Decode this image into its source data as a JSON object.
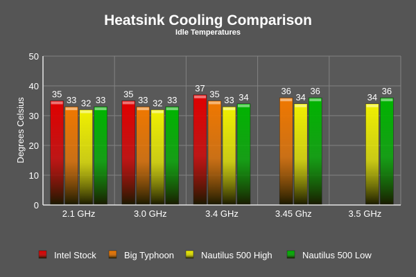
{
  "chart_data": {
    "type": "bar",
    "title": "Heatsink Cooling Comparison",
    "subtitle": "Idle Temperatures",
    "xlabel": "",
    "ylabel": "Degrees Celsius",
    "ylim": [
      0,
      50
    ],
    "yticks": [
      0,
      10,
      20,
      30,
      40,
      50
    ],
    "grid": true,
    "legend_position": "bottom",
    "categories": [
      "2.1 GHz",
      "3.0 GHz",
      "3.4 GHz",
      "3.45 Ghz",
      "3.5 GHz"
    ],
    "series": [
      {
        "name": "Intel Stock",
        "color": "#e00000",
        "values": [
          35,
          35,
          37,
          null,
          null
        ]
      },
      {
        "name": "Big Typhoon",
        "color": "#f07800",
        "values": [
          33,
          33,
          35,
          36,
          null
        ]
      },
      {
        "name": "Nautilus 500 High",
        "color": "#f0f000",
        "values": [
          32,
          32,
          33,
          34,
          34
        ]
      },
      {
        "name": "Nautilus 500 Low",
        "color": "#00b400",
        "values": [
          33,
          33,
          34,
          36,
          36
        ]
      }
    ]
  }
}
